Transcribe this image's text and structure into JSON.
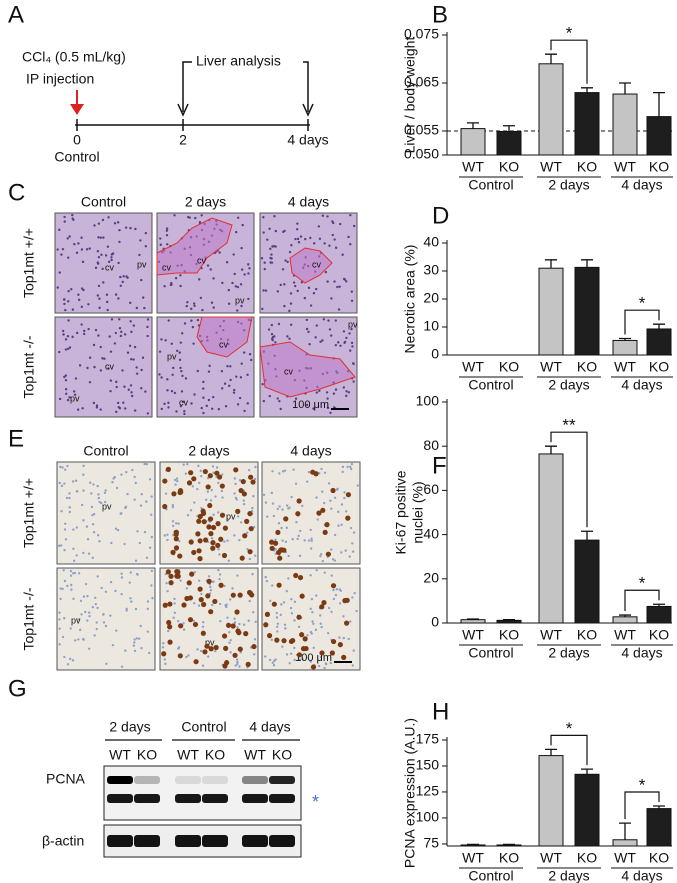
{
  "panel_labels": [
    "A",
    "B",
    "C",
    "D",
    "E",
    "F",
    "G",
    "H"
  ],
  "timeline": {
    "treatment": "CCl₄ (0.5 mL/kg)",
    "route": "IP injection",
    "analysis": "Liver analysis",
    "points": [
      "0",
      "2",
      "4 days"
    ],
    "control": "Control"
  },
  "histology": {
    "columns": [
      "Control",
      "2 days",
      "4 days"
    ],
    "rows": [
      "Top1mt +/+",
      "Top1mt -/-"
    ],
    "scale_bar": "100 μm",
    "images": [
      {
        "labels": [
          "cv",
          "pv"
        ]
      },
      {
        "labels": [
          "cv",
          "cv",
          "pv"
        ]
      },
      {
        "labels": [
          "cv"
        ]
      },
      {
        "labels": [
          "cv",
          "pv"
        ]
      },
      {
        "labels": [
          "pv",
          "cv",
          "cv"
        ]
      },
      {
        "labels": [
          "pv",
          "cv"
        ]
      }
    ]
  },
  "ihc": {
    "columns": [
      "Control",
      "2 days",
      "4 days"
    ],
    "rows": [
      "Top1mt +/+",
      "Top1mt -/-"
    ],
    "scale_bar": "100 μm",
    "images": [
      {
        "labels": [
          "pv"
        ]
      },
      {
        "labels": [
          "pv"
        ]
      },
      {
        "labels": []
      },
      {
        "labels": [
          "pv"
        ]
      },
      {
        "labels": [
          "pv"
        ]
      },
      {
        "labels": []
      }
    ]
  },
  "western": {
    "groups": [
      "2 days",
      "Control",
      "4 days"
    ],
    "lanes": [
      "WT",
      "KO",
      "WT",
      "KO",
      "WT",
      "KO"
    ],
    "bands": [
      "PCNA",
      "β-actin"
    ],
    "nonspecific": "*"
  },
  "chart_data": [
    {
      "type": "bar",
      "ylabel": "Liver / body weight",
      "categories": [
        "WT",
        "KO",
        "WT",
        "KO",
        "WT",
        "KO"
      ],
      "groups": [
        "Control",
        "2 days",
        "4 days"
      ],
      "values": [
        0.0555,
        0.0549,
        0.069,
        0.063,
        0.0627,
        0.058
      ],
      "errors": [
        0.0012,
        0.0012,
        0.002,
        0.001,
        0.0023,
        0.005
      ],
      "colors": [
        "#c4c4c4",
        "#1e1e1e"
      ],
      "ylim": [
        0.05,
        0.075
      ],
      "yticks": [
        {
          "value": 0.05,
          "label": "0.050"
        },
        {
          "value": 0.055,
          "label": "0.055"
        },
        {
          "value": 0.065,
          "label": "0.065"
        },
        {
          "value": 0.075,
          "label": "0.075"
        }
      ],
      "reference_line": 0.055,
      "significance": [
        {
          "bars": [
            2,
            3
          ],
          "label": "*"
        }
      ]
    },
    {
      "type": "bar",
      "ylabel": "Necrotic area (%)",
      "categories": [
        "WT",
        "KO",
        "WT",
        "KO",
        "WT",
        "KO"
      ],
      "groups": [
        "Control",
        "2 days",
        "4 days"
      ],
      "values": [
        0,
        0,
        31,
        31.3,
        5.2,
        9.3
      ],
      "errors": [
        null,
        null,
        3,
        2.7,
        0.7,
        1.7
      ],
      "colors": [
        "#c4c4c4",
        "#1e1e1e"
      ],
      "ylim": [
        0,
        40
      ],
      "yticks": [
        0,
        10,
        20,
        30,
        40
      ],
      "significance": [
        {
          "bars": [
            4,
            5
          ],
          "label": "*"
        }
      ]
    },
    {
      "type": "bar",
      "ylabel": [
        "Ki-67 positive",
        "nuclei (%)"
      ],
      "categories": [
        "WT",
        "KO",
        "WT",
        "KO",
        "WT",
        "KO"
      ],
      "groups": [
        "Control",
        "2 days",
        "4 days"
      ],
      "values": [
        1.5,
        1.2,
        76.5,
        37.5,
        2.8,
        7.5
      ],
      "errors": [
        0.3,
        0.3,
        3.5,
        4,
        0.8,
        1
      ],
      "colors": [
        "#c4c4c4",
        "#1e1e1e"
      ],
      "ylim": [
        0,
        100
      ],
      "yticks": [
        0,
        20,
        40,
        60,
        80,
        100
      ],
      "significance": [
        {
          "bars": [
            2,
            3
          ],
          "label": "**"
        },
        {
          "bars": [
            4,
            5
          ],
          "label": "*"
        }
      ]
    },
    {
      "type": "bar",
      "ylabel": "PCNA expression (A.U.)",
      "categories": [
        "WT",
        "KO",
        "WT",
        "KO",
        "WT",
        "KO"
      ],
      "groups": [
        "Control",
        "2 days",
        "4 days"
      ],
      "values": [
        74,
        74,
        160,
        142,
        79,
        109
      ],
      "errors": [
        0.5,
        0.5,
        6,
        5,
        16,
        2.5
      ],
      "colors": [
        "#c4c4c4",
        "#1e1e1e"
      ],
      "ylim": [
        73,
        175
      ],
      "yticks": [
        75,
        100,
        125,
        150,
        175
      ],
      "significance": [
        {
          "bars": [
            2,
            3
          ],
          "label": "*"
        },
        {
          "bars": [
            4,
            5
          ],
          "label": "*"
        }
      ]
    }
  ]
}
